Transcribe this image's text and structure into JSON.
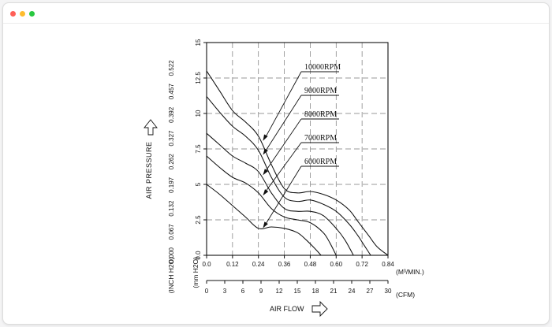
{
  "window": {
    "controls": [
      "close",
      "minimize",
      "maximize"
    ]
  },
  "chart_data": {
    "type": "line",
    "title": "",
    "ylabel": "AIR PRESSURE",
    "ylabel_inch_unit": "(INCH H2O)",
    "ylabel_mm_unit": "(mm H2O)",
    "xlabel": "AIR FLOW",
    "x_unit_m3": "(M³/MIN.)",
    "x_unit_cfm": "(CFM)",
    "xlim": [
      0,
      0.84
    ],
    "ylim": [
      0,
      15
    ],
    "x_ticks_m3": [
      "0.0",
      "0.12",
      "0.24",
      "0.36",
      "0.48",
      "0.60",
      "0.72",
      "0.84"
    ],
    "x_ticks_cfm": [
      "0",
      "3",
      "6",
      "9",
      "12",
      "15",
      "18",
      "21",
      "24",
      "27",
      "30"
    ],
    "y_ticks_mm": [
      "0.0",
      "2.5",
      "5",
      "7.5",
      "10",
      "12.5",
      "15"
    ],
    "y_ticks_inch": [
      "0.000",
      "0.067",
      "0.132",
      "0.197",
      "0.262",
      "0.327",
      "0.392",
      "0.457",
      "0.522"
    ],
    "grid": true,
    "series": [
      {
        "name": "10000RPM",
        "x": [
          0,
          0.06,
          0.12,
          0.18,
          0.24,
          0.3,
          0.36,
          0.42,
          0.48,
          0.54,
          0.6,
          0.66,
          0.7,
          0.75,
          0.79,
          0.84
        ],
        "y": [
          13.0,
          11.6,
          10.2,
          9.4,
          8.4,
          6.4,
          4.7,
          4.4,
          4.5,
          4.3,
          3.9,
          3.2,
          2.4,
          1.4,
          0.6,
          0.0
        ]
      },
      {
        "name": "9000RPM",
        "x": [
          0,
          0.06,
          0.12,
          0.18,
          0.24,
          0.3,
          0.36,
          0.42,
          0.48,
          0.54,
          0.6,
          0.66,
          0.7,
          0.73,
          0.76
        ],
        "y": [
          11.2,
          10.1,
          9.1,
          8.4,
          7.4,
          5.5,
          4.1,
          3.8,
          3.9,
          3.6,
          3.1,
          2.2,
          1.4,
          0.7,
          0.0
        ]
      },
      {
        "name": "8000RPM",
        "x": [
          0,
          0.06,
          0.12,
          0.18,
          0.24,
          0.3,
          0.36,
          0.42,
          0.48,
          0.54,
          0.6,
          0.64,
          0.68
        ],
        "y": [
          8.6,
          7.8,
          7.0,
          6.5,
          5.9,
          4.4,
          3.3,
          3.1,
          3.1,
          2.8,
          1.9,
          1.1,
          0.0
        ]
      },
      {
        "name": "7000RPM",
        "x": [
          0,
          0.06,
          0.12,
          0.18,
          0.24,
          0.3,
          0.36,
          0.42,
          0.48,
          0.54,
          0.57,
          0.6
        ],
        "y": [
          7.0,
          6.2,
          5.5,
          5.1,
          4.4,
          3.3,
          2.7,
          2.5,
          2.3,
          1.6,
          0.9,
          0.0
        ]
      },
      {
        "name": "6000RPM",
        "x": [
          0,
          0.06,
          0.12,
          0.18,
          0.24,
          0.3,
          0.36,
          0.42,
          0.46,
          0.5,
          0.53
        ],
        "y": [
          5.0,
          4.3,
          3.5,
          2.7,
          1.9,
          2.0,
          1.9,
          1.6,
          1.1,
          0.5,
          0.0
        ]
      }
    ]
  }
}
